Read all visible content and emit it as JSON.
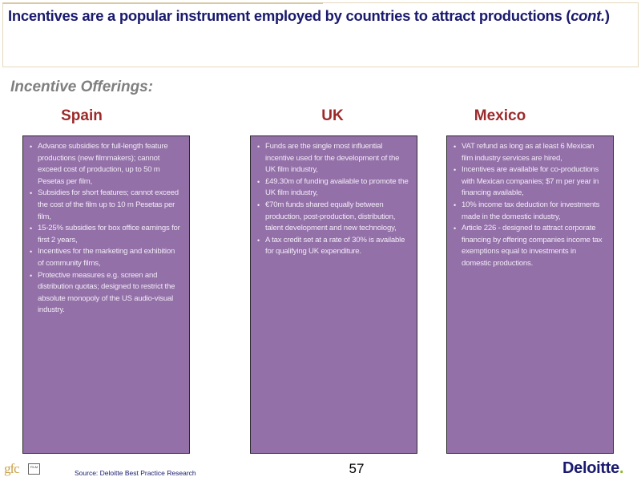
{
  "header": {
    "title_main": "Incentives are a popular instrument employed by countries to attract productions (",
    "title_cont": "cont.",
    "title_close": ")"
  },
  "section_title": "Incentive Offerings:",
  "columns": [
    {
      "country": "Spain",
      "items": [
        "Advance subsidies for full-length feature productions (new filmmakers); cannot exceed cost of production, up to 50 m Pesetas per film,",
        "Subsidies for short features; cannot exceed the cost of the film up to 10 m Pesetas per film,",
        "15-25% subsidies for box office earnings for first 2 years,",
        "Incentives for the marketing and exhibition of community films,",
        "Protective measures e.g. screen and distribution quotas; designed to restrict the absolute monopoly of the US audio-visual industry."
      ]
    },
    {
      "country": "UK",
      "items": [
        "Funds are the single most influential incentive used for the development of the UK film industry,",
        "£49.30m of funding available to promote the UK film industry,",
        "€70m funds shared equally between production, post-production, distribution, talent development and new technology,",
        "A tax credit set at a rate of 30% is available for qualifying UK expenditure."
      ]
    },
    {
      "country": "Mexico",
      "items": [
        "VAT refund as long as at least 6 Mexican film industry services are hired,",
        "Incentives are available for co-productions with Mexican companies; $7 m per year in financing available,",
        "10% income tax deduction for investments made in the domestic industry,",
        "Article 226 - designed to attract corporate financing by offering companies income tax exemptions equal to investments in domestic productions."
      ]
    }
  ],
  "bullet_glyph": "•",
  "footer": {
    "logo_text": "gfc",
    "logo_box_text": "FILM",
    "source": "Source: Deloitte Best Practice Research",
    "page_number": "57",
    "brand_name": "Deloitte",
    "brand_dot": "."
  },
  "colors": {
    "title": "#1a1a6e",
    "country_heading": "#9c2a2a",
    "panel_bg": "#9370a8",
    "brand_dot": "#86bc25"
  }
}
